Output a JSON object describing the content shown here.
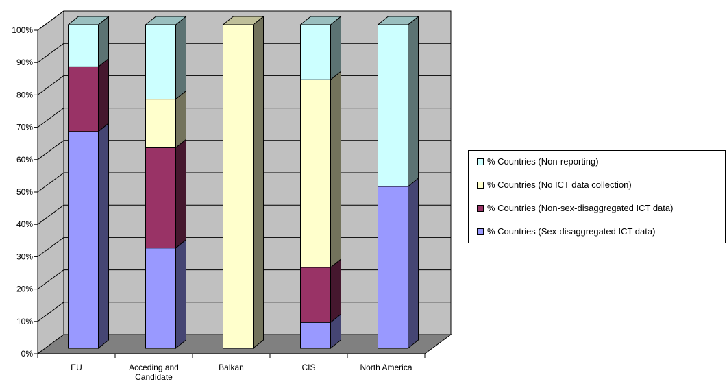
{
  "chart_data": {
    "type": "bar",
    "stacked": true,
    "style": "3d-stacked-100-percent",
    "categories": [
      "EU",
      "Acceding and Candidate",
      "Balkan",
      "CIS",
      "North America"
    ],
    "series": [
      {
        "name": "% Countries (Sex-disaggregated ICT data)",
        "color": "#9999ff",
        "values": [
          67,
          31,
          0,
          8,
          50
        ]
      },
      {
        "name": "% Countries (Non-sex-disaggregated ICT data)",
        "color": "#993366",
        "values": [
          20,
          31,
          0,
          17,
          0
        ]
      },
      {
        "name": "% Countries (No ICT data collection)",
        "color": "#ffffcc",
        "values": [
          0,
          15,
          100,
          58,
          0
        ]
      },
      {
        "name": "% Countries (Non-reporting)",
        "color": "#ccffff",
        "values": [
          13,
          23,
          0,
          17,
          50
        ]
      }
    ],
    "ylim": [
      0,
      100
    ],
    "yticks": [
      "0%",
      "10%",
      "20%",
      "30%",
      "40%",
      "50%",
      "60%",
      "70%",
      "80%",
      "90%",
      "100%"
    ],
    "grid": true,
    "legend_position": "right",
    "wall_color": "#c0c0c0",
    "floor_color": "#808080"
  }
}
